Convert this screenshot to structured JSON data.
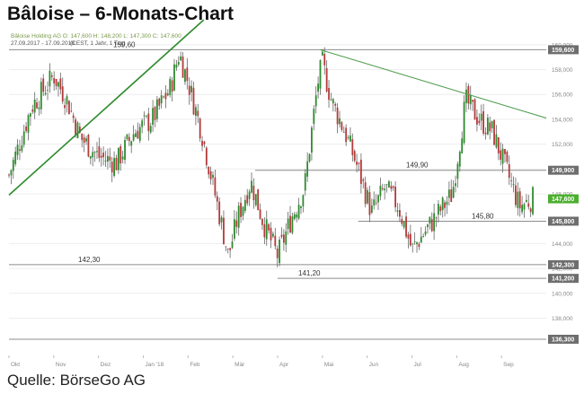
{
  "page_title": "Bâloise – 6-Monats-Chart",
  "source": "Quelle: BörseGo AG",
  "chart_data": {
    "type": "candlestick",
    "legend": "Bâloise Holding AG  O: 147,600  H: 148,200  L: 147,300  C: 147,600",
    "date_range": "27.09.2017 - 17.09.2018",
    "settings": "(CEST, 1 Jahr, 1 Tag)",
    "y_range": [
      135.0,
      161.0
    ],
    "y_ticks": [
      138000,
      140000,
      142000,
      144000,
      146000,
      148000,
      150000,
      152000,
      154000,
      156000,
      158000,
      160000
    ],
    "y_tick_labels": [
      "138,000",
      "140,000",
      "142,000",
      "144,000",
      "146,000",
      "148,000",
      "150,000",
      "152,000",
      "154,000",
      "156,000",
      "158,000",
      "160,000"
    ],
    "x_labels": [
      "Okt",
      "Nov",
      "Dez",
      "Jan '18",
      "Feb",
      "Mär",
      "Apr",
      "Mai",
      "Jun",
      "Jul",
      "Aug",
      "Sep"
    ],
    "x_range": [
      0,
      12
    ],
    "levels": [
      {
        "value": 159.6,
        "from": 0.0,
        "badge": "159,600",
        "label": "159,60"
      },
      {
        "value": 149.9,
        "from": 5.5,
        "badge": "149,900",
        "label": "149,90"
      },
      {
        "value": 145.8,
        "from": 7.8,
        "badge": "145,800",
        "label": "145,80"
      },
      {
        "value": 142.3,
        "from": 0.0,
        "badge": "142,300",
        "label": "142,30"
      },
      {
        "value": 141.2,
        "from": 6.0,
        "badge": "141,200",
        "label": "141,20"
      },
      {
        "value": 136.3,
        "from": 0.0,
        "badge": "136,300",
        "label": ""
      }
    ],
    "current": {
      "value": 147.6,
      "badge": "147,600"
    },
    "trendlines": [
      {
        "x": [
          0.0,
          4.35
        ],
        "y": [
          147.9,
          162.0
        ]
      },
      {
        "x": [
          6.95,
          12.0
        ],
        "y": [
          159.6,
          154.1
        ]
      }
    ],
    "close_path": {
      "x": [
        0.0,
        0.5,
        1.0,
        1.3,
        1.6,
        2.0,
        2.4,
        2.8,
        3.2,
        3.6,
        3.8,
        4.0,
        4.3,
        4.6,
        4.9,
        5.1,
        5.4,
        5.7,
        6.0,
        6.3,
        6.6,
        6.9,
        7.0,
        7.2,
        7.5,
        7.8,
        8.1,
        8.4,
        8.7,
        9.0,
        9.3,
        9.6,
        9.9,
        10.2,
        10.5,
        10.8,
        11.1,
        11.4,
        11.7
      ],
      "y": [
        149.5,
        155.0,
        157.5,
        155.5,
        152.5,
        151.0,
        150.5,
        153.0,
        154.0,
        156.5,
        159.3,
        157.0,
        153.0,
        148.0,
        143.0,
        146.0,
        149.0,
        145.5,
        143.0,
        146.0,
        148.5,
        157.0,
        158.5,
        155.5,
        153.0,
        150.0,
        146.5,
        148.5,
        147.0,
        143.5,
        145.0,
        146.5,
        148.0,
        155.5,
        154.0,
        153.0,
        150.0,
        147.0,
        147.6
      ]
    }
  }
}
